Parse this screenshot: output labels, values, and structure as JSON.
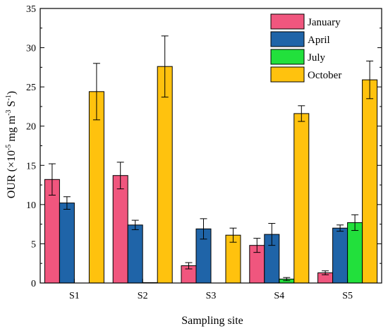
{
  "chart_data": {
    "type": "bar",
    "title": "",
    "xlabel": "Sampling site",
    "ylabel": {
      "prefix": "OUR (×10",
      "exp1": "-5",
      "mid1": " mg m",
      "exp2": "-3",
      "mid2": " S",
      "exp3": "-1",
      "suffix": ")"
    },
    "categories": [
      "S1",
      "S2",
      "S3",
      "S4",
      "S5"
    ],
    "ylim": [
      0,
      35
    ],
    "yticks": [
      0,
      5,
      10,
      15,
      20,
      25,
      30,
      35
    ],
    "grid": false,
    "legend_position": "top-right",
    "series": [
      {
        "name": "January",
        "color": "#F0567E",
        "values": [
          13.2,
          13.7,
          2.2,
          4.8,
          1.3
        ],
        "errors": [
          2.0,
          1.7,
          0.4,
          0.9,
          0.25
        ]
      },
      {
        "name": "April",
        "color": "#1F64A8",
        "values": [
          10.2,
          7.4,
          6.9,
          6.2,
          7.0
        ],
        "errors": [
          0.8,
          0.6,
          1.3,
          1.4,
          0.4
        ]
      },
      {
        "name": "July",
        "color": "#22E03C",
        "values": [
          0,
          0.05,
          0,
          0.5,
          7.7
        ],
        "errors": [
          0,
          0,
          0,
          0.2,
          1.0
        ]
      },
      {
        "name": "October",
        "color": "#FFC20E",
        "values": [
          24.4,
          27.6,
          6.1,
          21.6,
          25.9
        ],
        "errors": [
          3.6,
          3.9,
          0.9,
          1.0,
          2.4
        ]
      }
    ]
  }
}
